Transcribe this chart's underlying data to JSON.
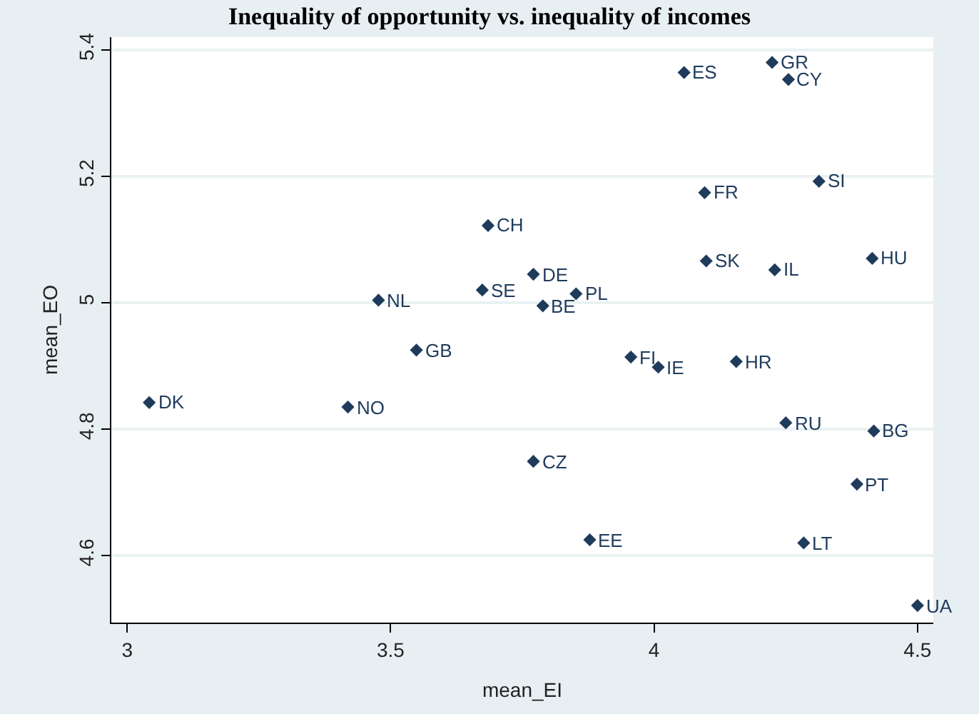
{
  "chart_data": {
    "type": "scatter",
    "title": "Inequality of opportunity vs. inequality of incomes",
    "xlabel": "mean_EI",
    "ylabel": "mean_EO",
    "x": [
      3.042,
      3.419,
      3.477,
      3.549,
      3.685,
      3.674,
      3.771,
      3.789,
      3.852,
      3.771,
      3.878,
      3.956,
      4.008,
      4.156,
      4.057,
      4.224,
      4.255,
      4.096,
      4.313,
      4.099,
      4.229,
      4.414,
      4.25,
      4.417,
      4.385,
      4.284,
      4.5
    ],
    "values": [
      4.842,
      4.835,
      5.004,
      4.925,
      5.122,
      5.02,
      5.045,
      4.995,
      5.014,
      4.749,
      4.625,
      4.914,
      4.898,
      4.907,
      5.364,
      5.38,
      5.353,
      5.174,
      5.192,
      5.066,
      5.052,
      5.07,
      4.81,
      4.797,
      4.713,
      4.62,
      4.521
    ],
    "color": "#1f3b5c",
    "marker": "diamond",
    "grid": "y",
    "xlim": [
      2.97,
      4.53
    ],
    "xticks": [
      3,
      3.5,
      4,
      4.5
    ],
    "ylim": [
      4.494,
      5.42
    ],
    "yticks": [
      4.6,
      4.8,
      5,
      5.2,
      5.4
    ],
    "annotations": [
      {
        "text": "DK",
        "x": 3.042,
        "y": 4.842
      },
      {
        "text": "NO",
        "x": 3.419,
        "y": 4.835
      },
      {
        "text": "NL",
        "x": 3.477,
        "y": 5.004
      },
      {
        "text": "GB",
        "x": 3.549,
        "y": 4.925
      },
      {
        "text": "CH",
        "x": 3.685,
        "y": 5.122
      },
      {
        "text": "SE",
        "x": 3.674,
        "y": 5.02
      },
      {
        "text": "DE",
        "x": 3.771,
        "y": 5.045
      },
      {
        "text": "BE",
        "x": 3.789,
        "y": 4.995
      },
      {
        "text": "PL",
        "x": 3.852,
        "y": 5.014
      },
      {
        "text": "CZ",
        "x": 3.771,
        "y": 4.749
      },
      {
        "text": "EE",
        "x": 3.878,
        "y": 4.625
      },
      {
        "text": "FI",
        "x": 3.956,
        "y": 4.914
      },
      {
        "text": "IE",
        "x": 4.008,
        "y": 4.898
      },
      {
        "text": "HR",
        "x": 4.156,
        "y": 4.907
      },
      {
        "text": "ES",
        "x": 4.057,
        "y": 5.364
      },
      {
        "text": "GR",
        "x": 4.224,
        "y": 5.38
      },
      {
        "text": "CY",
        "x": 4.255,
        "y": 5.353
      },
      {
        "text": "FR",
        "x": 4.096,
        "y": 5.174
      },
      {
        "text": "SI",
        "x": 4.313,
        "y": 5.192
      },
      {
        "text": "SK",
        "x": 4.099,
        "y": 5.066
      },
      {
        "text": "IL",
        "x": 4.229,
        "y": 5.052
      },
      {
        "text": "HU",
        "x": 4.414,
        "y": 5.07
      },
      {
        "text": "RU",
        "x": 4.25,
        "y": 4.81
      },
      {
        "text": "BG",
        "x": 4.417,
        "y": 4.797
      },
      {
        "text": "PT",
        "x": 4.385,
        "y": 4.713
      },
      {
        "text": "LT",
        "x": 4.284,
        "y": 4.62
      },
      {
        "text": "UA",
        "x": 4.5,
        "y": 4.521
      }
    ]
  }
}
